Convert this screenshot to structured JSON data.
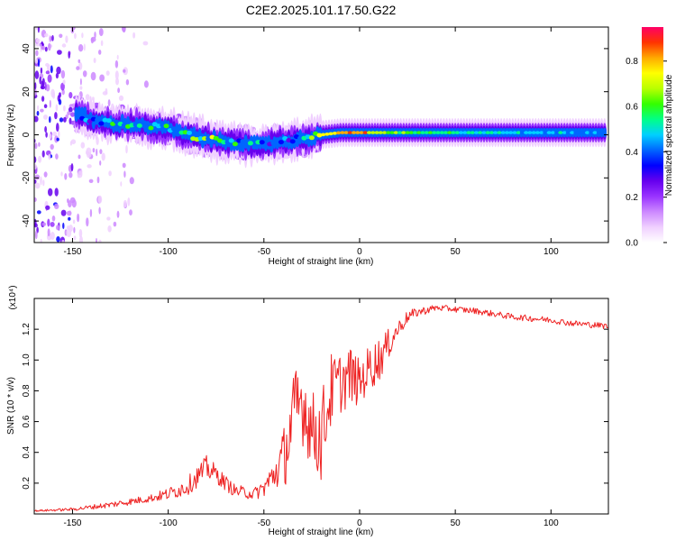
{
  "title": "C2E2.2025.101.17.50.G22",
  "colorbar": {
    "label": "Normalized spectral amplitude",
    "range": [
      0.0,
      0.95
    ],
    "ticks": [
      {
        "v": 0.0,
        "label": "0.0"
      },
      {
        "v": 0.2,
        "label": "0.2"
      },
      {
        "v": 0.4,
        "label": "0.4"
      },
      {
        "v": 0.6,
        "label": "0.6"
      },
      {
        "v": 0.8,
        "label": "0.8"
      }
    ],
    "colors": [
      "#ffffff",
      "#f0d0ff",
      "#cc88ff",
      "#9933ff",
      "#6600ee",
      "#0000ff",
      "#0066ff",
      "#00d0ff",
      "#00ff88",
      "#33ff00",
      "#b8ff00",
      "#ffff00",
      "#ffaa00",
      "#ff3300",
      "#ff0066"
    ]
  },
  "chart_data": [
    {
      "type": "heatmap",
      "xlabel": "Height of straight line (km)",
      "ylabel": "Frequency (Hz)",
      "xlim": [
        -170,
        130
      ],
      "ylim": [
        -50,
        50
      ],
      "xticks": [
        {
          "v": -150,
          "label": "-150"
        },
        {
          "v": -100,
          "label": "-100"
        },
        {
          "v": -50,
          "label": "-50"
        },
        {
          "v": 0,
          "label": "0"
        },
        {
          "v": 50,
          "label": "50"
        },
        {
          "v": 100,
          "label": "100"
        }
      ],
      "yticks": [
        {
          "v": -40,
          "label": "-40"
        },
        {
          "v": -20,
          "label": "-20"
        },
        {
          "v": 0,
          "label": "0"
        },
        {
          "v": 20,
          "label": "20"
        },
        {
          "v": 40,
          "label": "40"
        }
      ],
      "ridge": {
        "height_km": [
          -148,
          -140,
          -130,
          -120,
          -110,
          -100,
          -90,
          -80,
          -70,
          -60,
          -50,
          -40,
          -30,
          -25,
          -20,
          -10,
          0,
          10,
          30,
          50,
          80,
          100,
          130
        ],
        "frequency_hz": [
          10,
          7,
          5,
          5,
          4,
          3,
          0,
          -2,
          -3,
          -4,
          -5,
          -3,
          -2,
          -1,
          0,
          1,
          1,
          1,
          1,
          1,
          1,
          1,
          1
        ],
        "peak_amplitude": [
          0.5,
          0.45,
          0.55,
          0.6,
          0.6,
          0.6,
          0.65,
          0.7,
          0.6,
          0.55,
          0.5,
          0.45,
          0.5,
          0.7,
          0.75,
          0.8,
          0.95,
          0.7,
          0.6,
          0.55,
          0.5,
          0.5,
          0.45
        ]
      }
    },
    {
      "type": "line",
      "xlabel": "Height of straight line (km)",
      "ylabel": "SNR (10 * v/v)",
      "y_multiplier_label": "(x10⁴)",
      "xlim": [
        -170,
        130
      ],
      "ylim": [
        0,
        1.4
      ],
      "xticks": [
        {
          "v": -150,
          "label": "-150"
        },
        {
          "v": -100,
          "label": "-100"
        },
        {
          "v": -50,
          "label": "-50"
        },
        {
          "v": 0,
          "label": "0"
        },
        {
          "v": 50,
          "label": "50"
        },
        {
          "v": 100,
          "label": "100"
        }
      ],
      "yticks": [
        {
          "v": 0.2,
          "label": "0.2"
        },
        {
          "v": 0.4,
          "label": "0.4"
        },
        {
          "v": 0.6,
          "label": "0.6"
        },
        {
          "v": 0.8,
          "label": "0.8"
        },
        {
          "v": 1.0,
          "label": "1.0"
        },
        {
          "v": 1.2,
          "label": "1.2"
        }
      ],
      "series": [
        {
          "color": "#ee2222",
          "x": [
            -170,
            -150,
            -130,
            -110,
            -100,
            -90,
            -80,
            -75,
            -70,
            -65,
            -60,
            -55,
            -50,
            -45,
            -40,
            -35,
            -30,
            -25,
            -20,
            -15,
            -10,
            -5,
            0,
            5,
            10,
            15,
            20,
            25,
            30,
            40,
            50,
            60,
            70,
            80,
            90,
            100,
            110,
            120,
            130
          ],
          "y": [
            0.02,
            0.03,
            0.06,
            0.1,
            0.13,
            0.18,
            0.3,
            0.26,
            0.2,
            0.15,
            0.14,
            0.13,
            0.17,
            0.25,
            0.35,
            0.6,
            0.75,
            0.55,
            0.5,
            0.8,
            0.85,
            0.9,
            0.85,
            0.95,
            1.0,
            1.1,
            1.2,
            1.28,
            1.31,
            1.34,
            1.33,
            1.32,
            1.3,
            1.28,
            1.27,
            1.26,
            1.24,
            1.23,
            1.22
          ],
          "amp": [
            0.005,
            0.01,
            0.02,
            0.025,
            0.04,
            0.06,
            0.08,
            0.06,
            0.05,
            0.04,
            0.04,
            0.04,
            0.06,
            0.1,
            0.2,
            0.3,
            0.3,
            0.25,
            0.3,
            0.25,
            0.2,
            0.2,
            0.15,
            0.15,
            0.15,
            0.1,
            0.06,
            0.04,
            0.03,
            0.02,
            0.02,
            0.02,
            0.02,
            0.02,
            0.02,
            0.02,
            0.02,
            0.02,
            0.02
          ]
        }
      ]
    }
  ]
}
